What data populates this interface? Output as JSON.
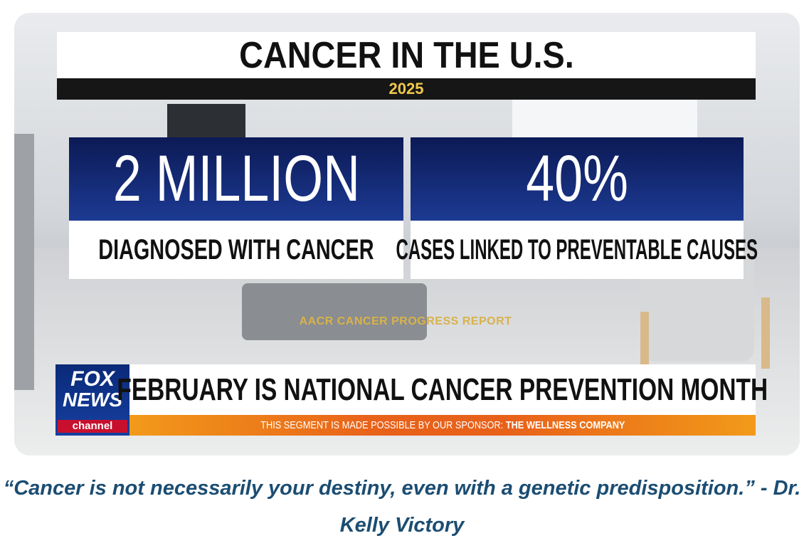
{
  "graphic": {
    "title": "CANCER IN THE U.S.",
    "year": "2025",
    "stats": [
      {
        "value": "2 MILLION",
        "label": "DIAGNOSED WITH CANCER"
      },
      {
        "value": "40%",
        "label": "CASES LINKED TO PREVENTABLE CAUSES"
      }
    ],
    "source": "AACR CANCER PROGRESS REPORT",
    "logo": {
      "line1": "FOX",
      "line2": "NEWS",
      "line3": "channel"
    },
    "headline": "FEBRUARY IS NATIONAL CANCER PREVENTION MONTH",
    "sponsor": {
      "prefix": "THIS SEGMENT IS MADE POSSIBLE BY OUR SPONSOR:",
      "name": "THE WELLNESS COMPANY"
    }
  },
  "caption": {
    "quote": "“Cancer is not necessarily your destiny, even with a genetic predisposition.”",
    "attribution": "- Dr. Kelly Victory"
  }
}
